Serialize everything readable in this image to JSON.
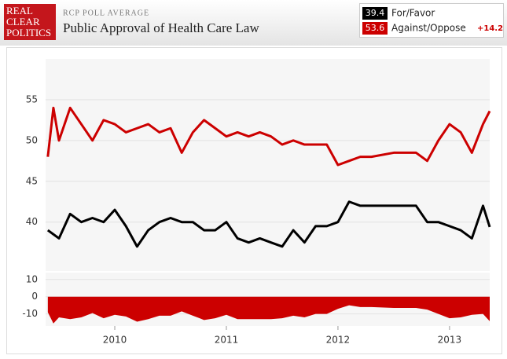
{
  "logo": [
    "REAL",
    "CLEAR",
    "POLITICS"
  ],
  "chart_data": {
    "type": "line",
    "subtitle": "RCP POLL AVERAGE",
    "title": "Public Approval of Health Care Law",
    "spread_label": "+14.2",
    "x": [
      2009.4,
      2009.45,
      2009.5,
      2009.6,
      2009.7,
      2009.8,
      2009.9,
      2010.0,
      2010.1,
      2010.2,
      2010.3,
      2010.4,
      2010.5,
      2010.6,
      2010.7,
      2010.8,
      2010.9,
      2011.0,
      2011.1,
      2011.2,
      2011.3,
      2011.4,
      2011.5,
      2011.6,
      2011.7,
      2011.8,
      2011.9,
      2012.0,
      2012.1,
      2012.2,
      2012.3,
      2012.5,
      2012.7,
      2012.8,
      2012.9,
      2013.0,
      2013.1,
      2013.2,
      2013.3,
      2013.36
    ],
    "series": [
      {
        "name": "For/Favor",
        "color": "#000000",
        "values": [
          39,
          38.5,
          38,
          41,
          40,
          40.5,
          40,
          41.5,
          39.5,
          37,
          39,
          40,
          40.5,
          40,
          40,
          39,
          39,
          40,
          38,
          37.5,
          38,
          37.5,
          37,
          39,
          37.5,
          39.5,
          39.5,
          40,
          42.5,
          42,
          42,
          42,
          42,
          40,
          40,
          39.5,
          39,
          38,
          42,
          39.4
        ]
      },
      {
        "name": "Against/Oppose",
        "color": "#cc0000",
        "values": [
          48,
          54,
          50,
          54,
          52,
          50,
          52.5,
          52,
          51,
          51.5,
          52,
          51,
          51.5,
          48.5,
          51,
          52.5,
          51.5,
          50.5,
          51,
          50.5,
          51,
          50.5,
          49.5,
          50,
          49.5,
          49.5,
          49.5,
          47,
          47.5,
          48,
          48,
          48.5,
          48.5,
          47.5,
          50,
          52,
          51,
          48.5,
          52,
          53.6
        ]
      },
      {
        "axis": "y2",
        "color": "#cc0000",
        "values": [
          -9,
          -15.5,
          -12,
          -13,
          -12,
          -9.5,
          -12.5,
          -10.5,
          -11.5,
          -14.5,
          -13,
          -11,
          -11,
          -8.5,
          -11,
          -13.5,
          -12.5,
          -10.5,
          -13,
          -13,
          -13,
          -13,
          -12.5,
          -11,
          -12,
          -10,
          -10,
          -7,
          -5,
          -6,
          -6,
          -6.5,
          -6.5,
          -7.5,
          -10,
          -12.5,
          -12,
          -10.5,
          -10,
          -14.2
        ]
      }
    ],
    "xlim": [
      2009.38,
      2013.36
    ],
    "xticks": [
      2010,
      2011,
      2012,
      2013
    ],
    "ylim": [
      34,
      60
    ],
    "yticks": [
      40,
      45,
      50,
      55
    ],
    "y2lim": [
      -17,
      14
    ],
    "y2ticks": [
      10,
      0,
      -10
    ],
    "grid": true
  }
}
